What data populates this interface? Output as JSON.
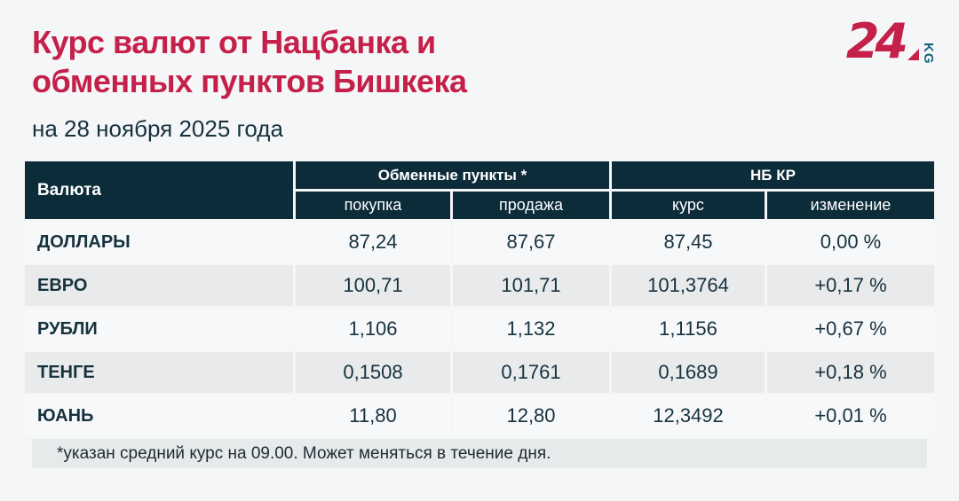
{
  "page": {
    "title_line1": "Курс валют от Нацбанка и",
    "title_line2": "обменных пунктов Бишкека",
    "date": "на 28 ноября 2025 года"
  },
  "logo": {
    "number": "24",
    "suffix": "KG",
    "red": "#c42049",
    "teal": "#156379"
  },
  "table": {
    "header": {
      "currency": "Валюта",
      "group_exchange": "Обменные пункты *",
      "group_nbkr": "НБ КР",
      "sub_buy": "покупка",
      "sub_sell": "продажа",
      "sub_rate": "курс",
      "sub_change": "изменение"
    },
    "rows": [
      {
        "currency": "ДОЛЛАРЫ",
        "buy": "87,24",
        "sell": "87,67",
        "rate": "87,45",
        "change": "0,00 %"
      },
      {
        "currency": "ЕВРО",
        "buy": "100,71",
        "sell": "101,71",
        "rate": "101,3764",
        "change": "+0,17 %"
      },
      {
        "currency": "РУБЛИ",
        "buy": "1,106",
        "sell": "1,132",
        "rate": "1,1156",
        "change": "+0,67 %"
      },
      {
        "currency": "ТЕНГЕ",
        "buy": "0,1508",
        "sell": "0,1761",
        "rate": "0,1689",
        "change": "+0,18 %"
      },
      {
        "currency": "ЮАНЬ",
        "buy": "11,80",
        "sell": "12,80",
        "rate": "12,3492",
        "change": "+0,01 %"
      }
    ],
    "footnote": "*указан средний курс на 09.00. Может меняться в течение дня."
  },
  "colors": {
    "title_red": "#c42049",
    "header_bg": "#0d2c3a",
    "row_light": "#f7f8fa",
    "row_gray": "#e8eaeb",
    "text_dark": "#16323f",
    "page_bg": "#f5f6f8"
  },
  "chart_data": {
    "type": "table",
    "title": "Курс валют от Нацбанка и обменных пунктов Бишкека",
    "subtitle": "на 28 ноября 2025 года",
    "column_groups": [
      "Валюта",
      "Обменные пункты *",
      "НБ КР"
    ],
    "columns": [
      "Валюта",
      "покупка",
      "продажа",
      "курс",
      "изменение"
    ],
    "rows": [
      [
        "ДОЛЛАРЫ",
        87.24,
        87.67,
        87.45,
        "0,00 %"
      ],
      [
        "ЕВРО",
        100.71,
        101.71,
        101.3764,
        "+0,17 %"
      ],
      [
        "РУБЛИ",
        1.106,
        1.132,
        1.1156,
        "+0,67 %"
      ],
      [
        "ТЕНГЕ",
        0.1508,
        0.1761,
        0.1689,
        "+0,18 %"
      ],
      [
        "ЮАНЬ",
        11.8,
        12.8,
        12.3492,
        "+0,01 %"
      ]
    ],
    "footnote": "*указан средний курс на 09.00. Может меняться в течение дня."
  }
}
